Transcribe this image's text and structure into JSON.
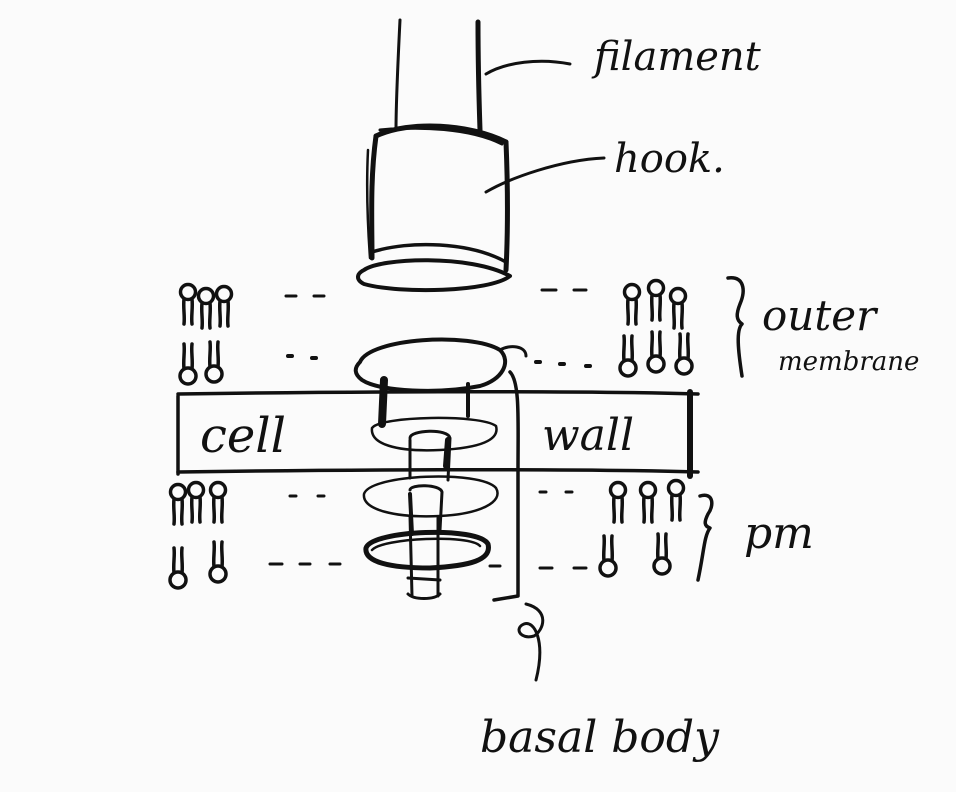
{
  "colors": {
    "background": "#fbfbfb",
    "ink": "#111111"
  },
  "labels": {
    "filament": "filament",
    "hook": "hook.",
    "outer_membrane_1": "outer",
    "outer_membrane_2": "membrane",
    "cell": "cell",
    "wall": "wall",
    "pm": "pm",
    "basal_body": "basal body"
  }
}
